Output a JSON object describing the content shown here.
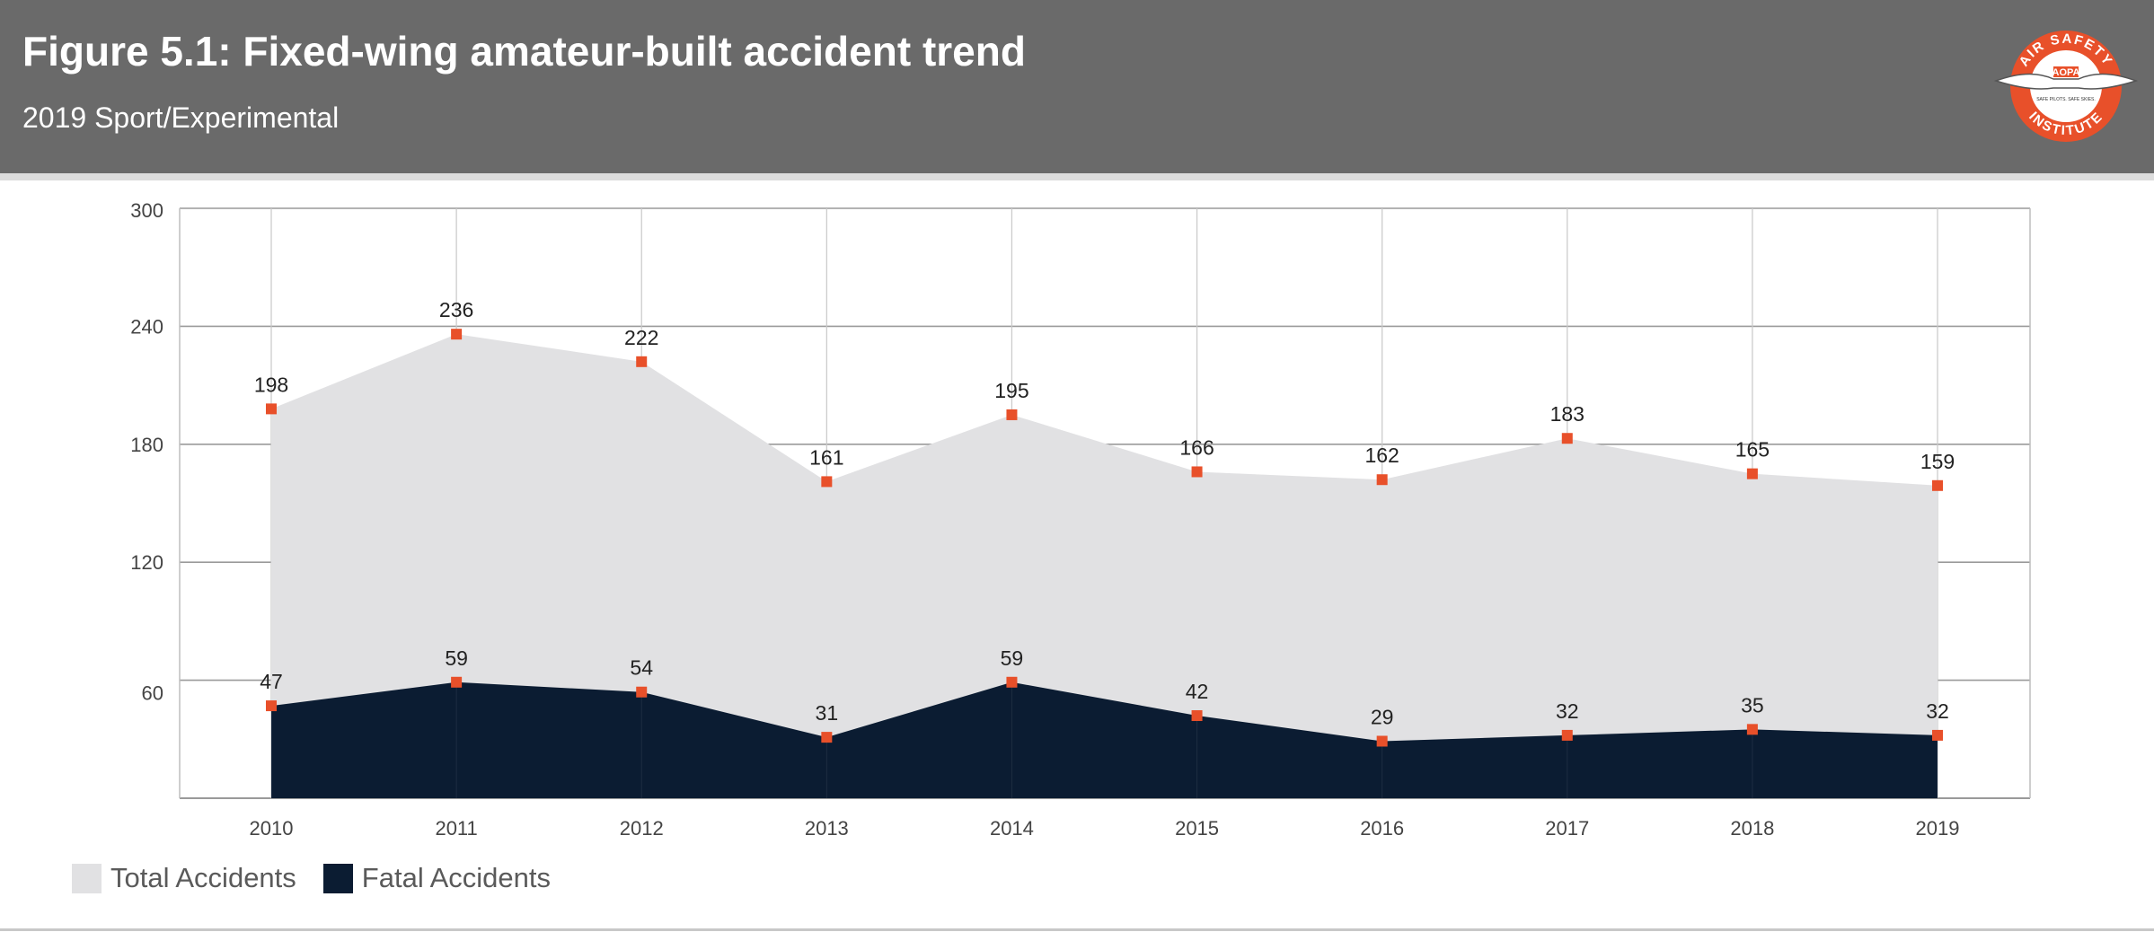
{
  "header": {
    "title": "Figure 5.1: Fixed-wing amateur-built accident trend",
    "subtitle": "2019 Sport/Experimental",
    "logo": {
      "top_text": "AIR SAFETY",
      "center_text": "AOPA",
      "bottom_text": "INSTITUTE",
      "small_text": "SAFE PILOTS. SAFE SKIES."
    }
  },
  "colors": {
    "header_bg": "#6a6a6a",
    "total_fill": "#e1e1e3",
    "fatal_fill": "#0b1c32",
    "marker": "#e8502a",
    "grid": "#9a9a9a",
    "logo_red": "#e8502a"
  },
  "chart_data": {
    "type": "area",
    "categories": [
      "2010",
      "2011",
      "2012",
      "2013",
      "2014",
      "2015",
      "2016",
      "2017",
      "2018",
      "2019"
    ],
    "series": [
      {
        "name": "Total Accidents",
        "values": [
          198,
          236,
          222,
          161,
          195,
          166,
          162,
          183,
          165,
          159
        ]
      },
      {
        "name": "Fatal Accidents",
        "values": [
          47,
          59,
          54,
          31,
          59,
          42,
          29,
          32,
          35,
          32
        ]
      }
    ],
    "yticks": [
      "60",
      "120",
      "180",
      "240",
      "300"
    ],
    "ylim": [
      0,
      300
    ],
    "grid": true,
    "legend_position": "bottom-left",
    "data_labels": true,
    "markers": "square"
  },
  "legend": {
    "items": [
      {
        "label": "Total Accidents"
      },
      {
        "label": "Fatal Accidents"
      }
    ]
  }
}
